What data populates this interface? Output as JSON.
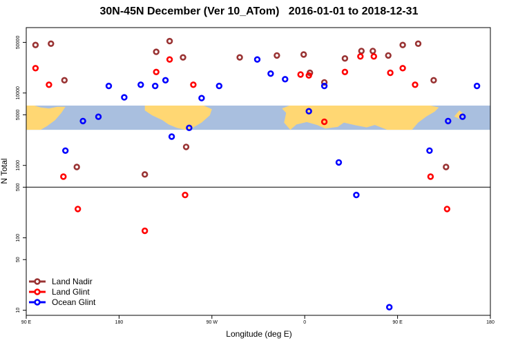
{
  "chart_data": {
    "type": "scatter",
    "title": "30N-45N December (Ver 10_ATom)   2016-01-01 to 2018-12-31",
    "xlabel": "Longitude (deg E)",
    "ylabel": "N Total",
    "xscale": "linear",
    "yscale": "log",
    "xlim": [
      90,
      540
    ],
    "ylim": [
      8.5,
      80000
    ],
    "x_ticks": [
      {
        "value": 90,
        "label": "90 E"
      },
      {
        "value": 180,
        "label": "180"
      },
      {
        "value": 270,
        "label": "90 W"
      },
      {
        "value": 360,
        "label": "0"
      },
      {
        "value": 450,
        "label": "90 E"
      },
      {
        "value": 540,
        "label": "180"
      }
    ],
    "y_ticks": [
      {
        "value": 10,
        "label": "10"
      },
      {
        "value": 50,
        "label": "50"
      },
      {
        "value": 100,
        "label": "100"
      },
      {
        "value": 500,
        "label": "500"
      },
      {
        "value": 1000,
        "label": "1000"
      },
      {
        "value": 5000,
        "label": "5000"
      },
      {
        "value": 10000,
        "label": "10000"
      },
      {
        "value": 50000,
        "label": "50000"
      }
    ],
    "threshold_line": 500,
    "map_band": {
      "ymin": 3100,
      "ymax": 6700,
      "ocean_color": "#a9bfdf",
      "land_color": "#ffd773"
    },
    "legend_position": "bottom-left",
    "series": [
      {
        "name": "Land Nadir",
        "color": "#993333",
        "points": [
          [
            99,
            46000
          ],
          [
            114,
            48000
          ],
          [
            127,
            15000
          ],
          [
            139,
            950
          ],
          [
            205,
            750
          ],
          [
            216,
            37000
          ],
          [
            229,
            52000
          ],
          [
            242,
            31000
          ],
          [
            245,
            1800
          ],
          [
            297,
            31000
          ],
          [
            333,
            33000
          ],
          [
            359,
            34000
          ],
          [
            365,
            19000
          ],
          [
            379,
            14000
          ],
          [
            399,
            30000
          ],
          [
            415,
            38000
          ],
          [
            426,
            38000
          ],
          [
            441,
            33000
          ],
          [
            455,
            46000
          ],
          [
            470,
            48000
          ],
          [
            485,
            15000
          ],
          [
            497,
            950
          ]
        ]
      },
      {
        "name": "Land Glint",
        "color": "#ff0000",
        "points": [
          [
            99,
            22000
          ],
          [
            112,
            13000
          ],
          [
            126,
            700
          ],
          [
            140,
            250
          ],
          [
            205,
            125
          ],
          [
            216,
            19500
          ],
          [
            229,
            29000
          ],
          [
            244,
            390
          ],
          [
            252,
            13000
          ],
          [
            356,
            18000
          ],
          [
            364,
            17500
          ],
          [
            379,
            4000
          ],
          [
            399,
            19500
          ],
          [
            414,
            32000
          ],
          [
            427,
            32000
          ],
          [
            443,
            19000
          ],
          [
            455,
            22000
          ],
          [
            467,
            13000
          ],
          [
            482,
            700
          ],
          [
            498,
            250
          ]
        ]
      },
      {
        "name": "Ocean Glint",
        "color": "#0000ff",
        "points": [
          [
            128,
            1600
          ],
          [
            145,
            4100
          ],
          [
            160,
            4700
          ],
          [
            170,
            12500
          ],
          [
            185,
            8700
          ],
          [
            201,
            13000
          ],
          [
            215,
            12500
          ],
          [
            225,
            15000
          ],
          [
            231,
            2500
          ],
          [
            248,
            3300
          ],
          [
            260,
            8500
          ],
          [
            277,
            12500
          ],
          [
            314,
            29000
          ],
          [
            327,
            18500
          ],
          [
            341,
            15500
          ],
          [
            364,
            5600
          ],
          [
            379,
            12500
          ],
          [
            393,
            1100
          ],
          [
            410,
            390
          ],
          [
            442,
            11
          ],
          [
            481,
            1600
          ],
          [
            499,
            4100
          ],
          [
            513,
            4700
          ],
          [
            527,
            12500
          ]
        ]
      }
    ]
  }
}
